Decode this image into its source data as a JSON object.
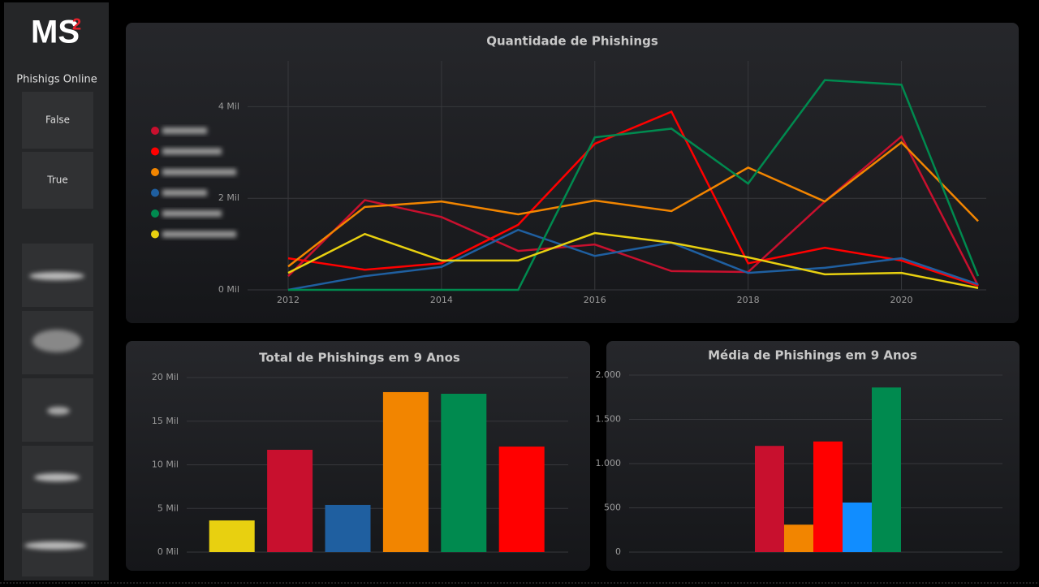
{
  "sidebar": {
    "logo": "MS",
    "logo_sup": "2",
    "title": "Phishigs Online",
    "buttons": [
      "False",
      "True"
    ]
  },
  "chart_data": [
    {
      "type": "line",
      "title": "Quantidade de Phishings",
      "x": [
        2012,
        2013,
        2014,
        2015,
        2016,
        2017,
        2018,
        2019,
        2020,
        2021
      ],
      "xlim": [
        2012,
        2021
      ],
      "xticks": [
        2012,
        2014,
        2016,
        2018,
        2020
      ],
      "ylim": [
        0,
        5000
      ],
      "yticks": [
        {
          "value": 0,
          "label": "0 Mil"
        },
        {
          "value": 2000,
          "label": "2 Mil"
        },
        {
          "value": 4000,
          "label": "4 Mil"
        }
      ],
      "grid": true,
      "series": [
        {
          "color": "#c8102e",
          "values": [
            300,
            1960,
            1590,
            850,
            990,
            410,
            390,
            1930,
            3350,
            90
          ]
        },
        {
          "color": "#ff0000",
          "values": [
            690,
            440,
            580,
            1420,
            3190,
            3890,
            580,
            920,
            640,
            90
          ]
        },
        {
          "color": "#f28500",
          "values": [
            510,
            1810,
            1930,
            1650,
            1950,
            1720,
            2670,
            1930,
            3220,
            1500
          ]
        },
        {
          "color": "#1f5fa0",
          "values": [
            0,
            300,
            500,
            1310,
            740,
            1030,
            370,
            480,
            690,
            120
          ]
        },
        {
          "color": "#008a4f",
          "values": [
            0,
            0,
            0,
            0,
            3330,
            3520,
            2320,
            4580,
            4480,
            300
          ]
        },
        {
          "color": "#e8d010",
          "values": [
            370,
            1220,
            640,
            640,
            1240,
            1030,
            710,
            340,
            370,
            40
          ]
        }
      ]
    },
    {
      "type": "bar",
      "title": "Total de Phishings em 9 Anos",
      "values": [
        3630,
        11720,
        5400,
        18330,
        18140,
        12090
      ],
      "colors": [
        "#e8d010",
        "#c8102e",
        "#1f5fa0",
        "#f28500",
        "#008a4f",
        "#ff0000"
      ],
      "ylim": [
        0,
        20000
      ],
      "yticks": [
        {
          "value": 0,
          "label": "0 Mil"
        },
        {
          "value": 5000,
          "label": "5 Mil"
        },
        {
          "value": 10000,
          "label": "10 Mil"
        },
        {
          "value": 15000,
          "label": "15 Mil"
        },
        {
          "value": 20000,
          "label": "20 Mil"
        }
      ],
      "grid": true
    },
    {
      "type": "bar",
      "title": "Média de Phishings em 9 Anos",
      "values": [
        1200,
        310,
        1250,
        560,
        1860
      ],
      "colors": [
        "#c8102e",
        "#f28500",
        "#ff0000",
        "#118dff",
        "#008a4f"
      ],
      "ylim": [
        0,
        2000
      ],
      "yticks": [
        0,
        500,
        {
          "value": 1000,
          "label": "1.000"
        },
        {
          "value": 1500,
          "label": "1.500"
        },
        {
          "value": 2000,
          "label": "2.000"
        }
      ],
      "grid": true
    }
  ]
}
